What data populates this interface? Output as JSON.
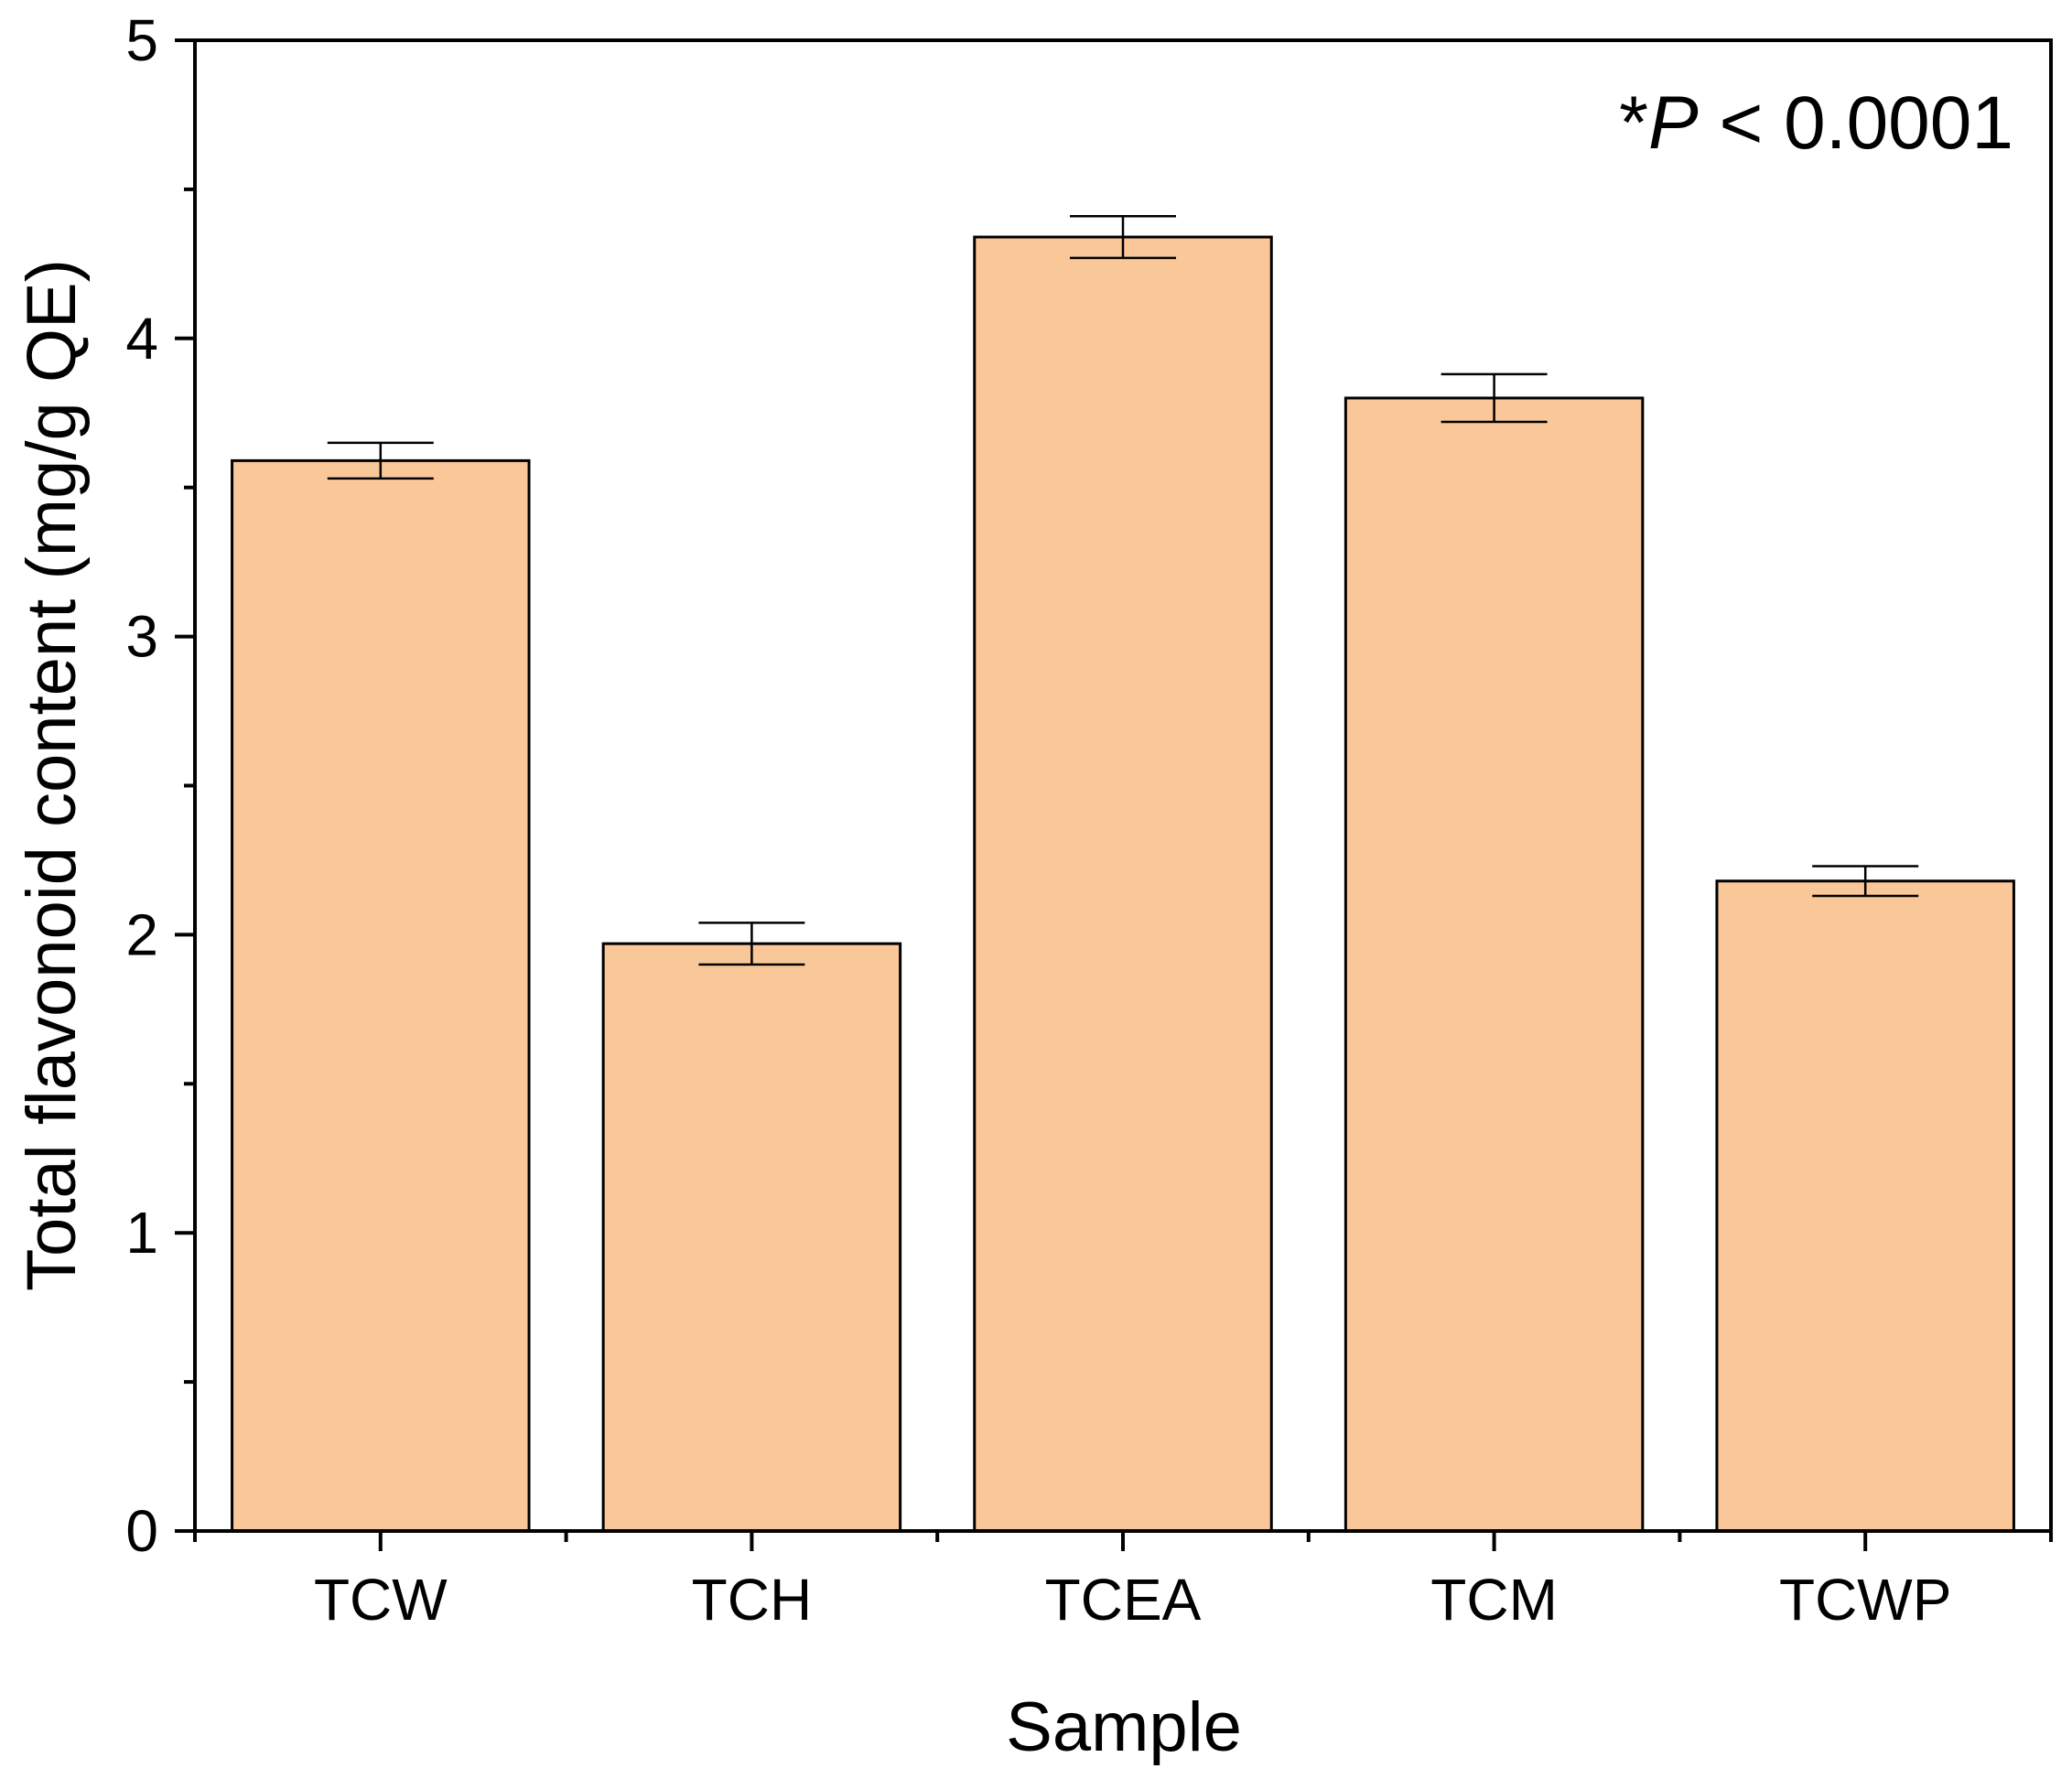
{
  "chart_data": {
    "type": "bar",
    "categories": [
      "TCW",
      "TCH",
      "TCEA",
      "TCM",
      "TCWP"
    ],
    "values": [
      3.59,
      1.97,
      4.34,
      3.8,
      2.18
    ],
    "errors": [
      0.06,
      0.07,
      0.07,
      0.08,
      0.05
    ],
    "xlabel": "Sample",
    "ylabel": "Total flavonoid content (mg/g QE)",
    "ylim": [
      0,
      5
    ],
    "yticks": [
      0,
      1,
      2,
      3,
      4,
      5
    ],
    "ytick_labels": [
      "0",
      "1",
      "2",
      "3",
      "4",
      "5"
    ],
    "grid": false,
    "bar_color": "#FAC898",
    "annotation": {
      "prefix": "*",
      "italic": "P",
      "suffix": " < 0.0001"
    }
  }
}
